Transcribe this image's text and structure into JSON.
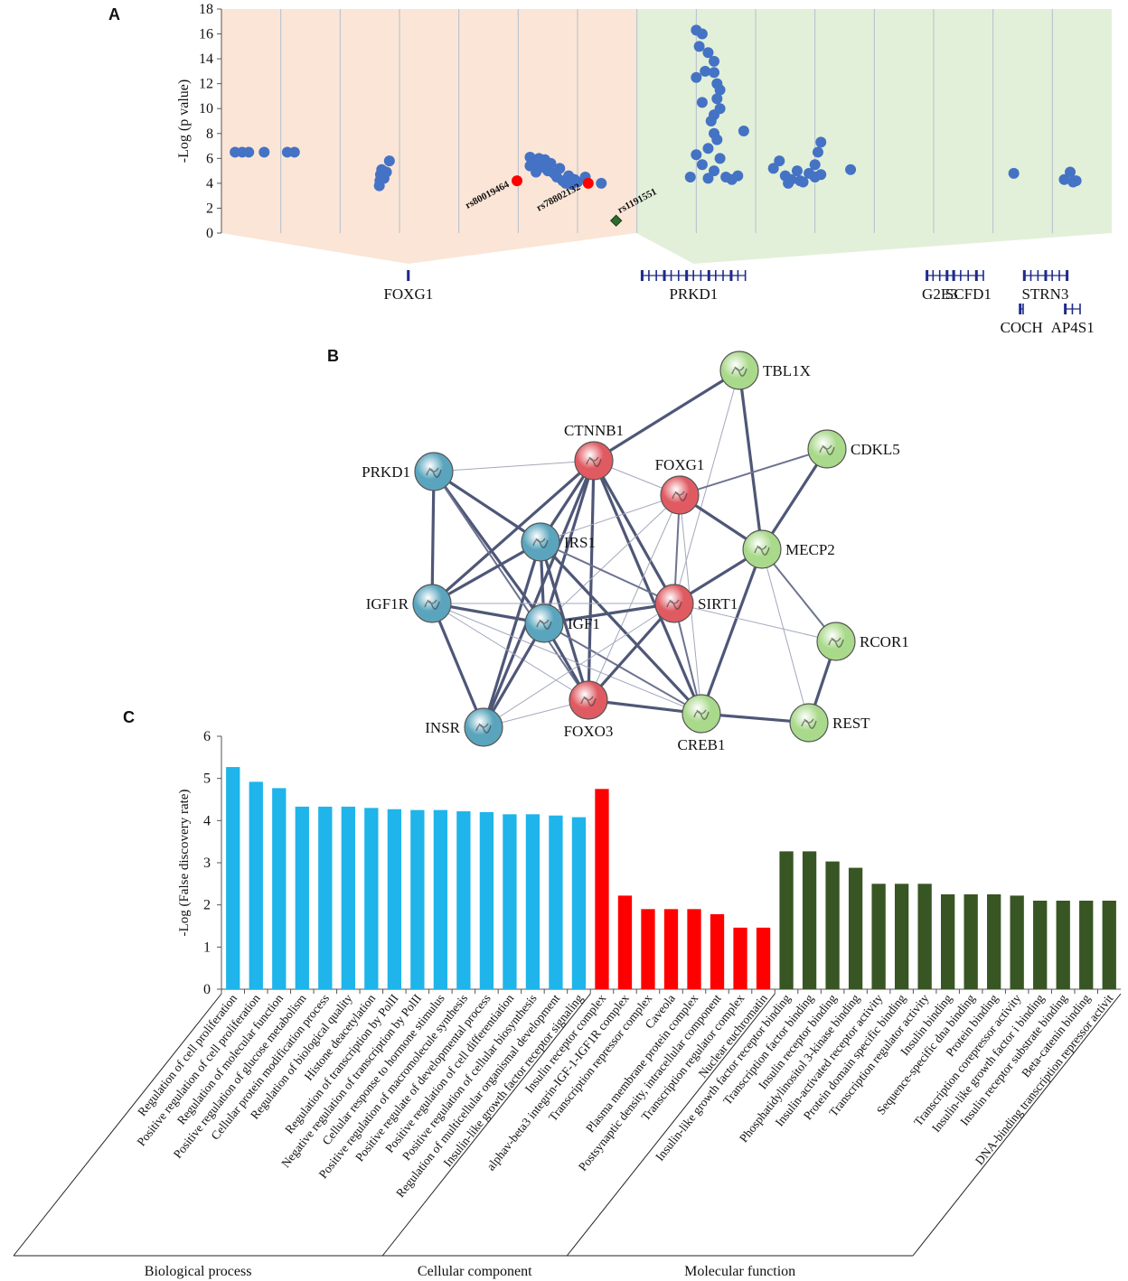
{
  "chart_data": [
    {
      "type": "scatter",
      "panel": "A",
      "y_label": "-Log (p value)",
      "xlim": [
        0,
        15
      ],
      "ylim": [
        0,
        18
      ],
      "yticks": [
        0,
        2,
        4,
        6,
        8,
        10,
        12,
        14,
        16,
        18
      ],
      "color": "#4472c4",
      "x": [
        0.23,
        0.35,
        0.46,
        0.72,
        1.11,
        1.23,
        2.66,
        2.67,
        2.68,
        2.7,
        2.78,
        2.83,
        2.74,
        5.2,
        5.25,
        5.3,
        5.35,
        5.4,
        5.45,
        5.5,
        5.55,
        5.6,
        5.65,
        5.7,
        5.75,
        5.8,
        5.85,
        5.9,
        5.95,
        6.0,
        5.2,
        5.3,
        5.5,
        6.13,
        6.4,
        8.0,
        8.1,
        8.05,
        8.2,
        8.3,
        8.3,
        8.35,
        8.4,
        8.35,
        8.4,
        8.3,
        8.3,
        8.35,
        8.2,
        8.0,
        8.1,
        8.3,
        7.9,
        8.5,
        8.6,
        8.7,
        8.2,
        8.4,
        8.8,
        8.0,
        8.1,
        8.25,
        8.15,
        9.3,
        9.4,
        9.5,
        9.6,
        9.7,
        9.8,
        9.9,
        10.0,
        10.05,
        10.1,
        10.0,
        9.55,
        9.75,
        10.1,
        10.6,
        13.35,
        14.3,
        14.2,
        14.35,
        14.4
      ],
      "values": [
        6.5,
        6.5,
        6.5,
        6.5,
        6.5,
        6.5,
        3.8,
        4.2,
        4.7,
        5.1,
        4.9,
        5.8,
        4.4,
        6.1,
        5.8,
        5.5,
        6.0,
        5.3,
        5.9,
        5.0,
        5.6,
        4.8,
        4.5,
        5.2,
        4.2,
        4.0,
        4.6,
        3.9,
        4.3,
        4.1,
        5.4,
        4.9,
        5.5,
        4.5,
        4.0,
        16.3,
        16.0,
        15.0,
        14.5,
        13.8,
        12.9,
        12.0,
        11.5,
        10.8,
        10.0,
        9.5,
        8.0,
        7.5,
        6.8,
        6.3,
        5.5,
        5.0,
        4.5,
        4.5,
        4.3,
        4.6,
        4.4,
        6.0,
        8.2,
        12.5,
        10.5,
        9.0,
        13.0,
        5.2,
        5.8,
        4.6,
        4.3,
        5.0,
        4.1,
        4.8,
        4.5,
        6.5,
        7.3,
        5.5,
        4.0,
        4.2,
        4.7,
        5.1,
        4.8,
        4.9,
        4.3,
        4.1,
        4.2
      ],
      "highlights": [
        {
          "label": "rs80019464",
          "x": 4.98,
          "y": 4.2,
          "color": "#ff0000",
          "marker": "circle"
        },
        {
          "label": "rs78802132",
          "x": 6.18,
          "y": 4.0,
          "color": "#ff0000",
          "marker": "circle"
        },
        {
          "label": "rs1191551",
          "x": 6.65,
          "y": 1.0,
          "color": "#2e6b2e",
          "marker": "diamond"
        }
      ],
      "genes": [
        [
          {
            "name": "FOXG1",
            "start": 3.14,
            "end": 3.16
          },
          {
            "name": "PRKD1",
            "start": 7.08,
            "end": 8.83
          },
          {
            "name": "G2E3",
            "start": 11.88,
            "end": 12.33
          },
          {
            "name": "SCFD1",
            "start": 12.33,
            "end": 12.84
          },
          {
            "name": "STRN3",
            "start": 13.52,
            "end": 14.24
          }
        ],
        [
          {
            "name": "COCH",
            "start": 13.45,
            "end": 13.51
          },
          {
            "name": "AP4S1",
            "start": 14.21,
            "end": 14.47
          }
        ]
      ]
    },
    {
      "type": "bar",
      "panel": "C",
      "y_label": "-Log (False discovery rate)",
      "ylim": [
        0,
        6
      ],
      "yticks": [
        0,
        1,
        2,
        3,
        4,
        5,
        6
      ],
      "groups": [
        {
          "name": "Biological process",
          "color": "#1fb4ea",
          "categories": [
            "Regulation of cell proliferation",
            "Positive regulation of cell proliferation",
            "Regulation of molecular function",
            "Positive regulation of glucose metabolism",
            "Cellular protein modification process",
            "Regulation of biological quality",
            "Histone deacetylation",
            "Regulation of transcription by PolII",
            "Negative regulation of transcription by PolII",
            "Cellular response to hormone stimulus",
            "Positive regulation of macromolecule synthesis",
            "Positive regulate of developmental process",
            "Positive regulation of cell differentiation",
            "Positive regulation of cellular biosynthesis",
            "Regulation of multicellular organismal development",
            "Insulin-like growth factor receptor signaling"
          ],
          "values": [
            5.27,
            4.92,
            4.77,
            4.33,
            4.33,
            4.33,
            4.3,
            4.27,
            4.25,
            4.25,
            4.22,
            4.2,
            4.15,
            4.15,
            4.12,
            4.08
          ]
        },
        {
          "name": "Cellular component",
          "color": "#ff0000",
          "categories": [
            "Insulin receptor complex",
            "alphav-beta3 integrin-IGF-1-IGF1R complex",
            "Transcription repressor complex",
            "Caveola",
            "Plasma membrane protein complex",
            "Postsynaptic density, intracellular component",
            "Transcription regulator complex",
            "Nuclear euchromatin"
          ],
          "values": [
            4.75,
            2.22,
            1.9,
            1.9,
            1.9,
            1.78,
            1.46,
            1.46
          ]
        },
        {
          "name": "Molecular function",
          "color": "#375623",
          "categories": [
            "Insulin-like growth factor receptor binding",
            "Transcription factor binding",
            "Insulin receptor binding",
            "Phosphatidylinositol 3-kinase binding",
            "Insulin-activated receptor activity",
            "Protein domain specific binding",
            "Transcription regulator activity",
            "Insulin binding",
            "Sequence-specific dna binding",
            "Protein binding",
            "Transcription corepressor activity",
            "Insulin-like growth factor i binding",
            "Insulin receptor substrate binding",
            "Beta-catenin binding",
            "DNA-binding transcription repressor activit"
          ],
          "values": [
            3.27,
            3.27,
            3.03,
            2.88,
            2.5,
            2.5,
            2.5,
            2.25,
            2.25,
            2.25,
            2.22,
            2.1,
            2.1,
            2.1,
            2.1
          ]
        }
      ]
    }
  ],
  "network": {
    "panel": "B",
    "nodes": [
      {
        "label": "TBL1X",
        "color": "#a9d98b"
      },
      {
        "label": "CDKL5",
        "color": "#a9d98b"
      },
      {
        "label": "CTNNB1",
        "color": "#e05a62"
      },
      {
        "label": "FOXG1",
        "color": "#e05a62"
      },
      {
        "label": "PRKD1",
        "color": "#5aa5bd"
      },
      {
        "label": "IRS1",
        "color": "#5aa5bd"
      },
      {
        "label": "MECP2",
        "color": "#a9d98b"
      },
      {
        "label": "IGF1R",
        "color": "#5aa5bd"
      },
      {
        "label": "SIRT1",
        "color": "#e05a62"
      },
      {
        "label": "IGF1",
        "color": "#5aa5bd"
      },
      {
        "label": "RCOR1",
        "color": "#a9d98b"
      },
      {
        "label": "INSR",
        "color": "#5aa5bd"
      },
      {
        "label": "FOXO3",
        "color": "#e05a62"
      },
      {
        "label": "CREB1",
        "color": "#a9d98b"
      },
      {
        "label": "REST",
        "color": "#a9d98b"
      }
    ],
    "edges": [
      [
        2,
        0
      ],
      [
        0,
        6
      ],
      [
        0,
        8
      ],
      [
        1,
        3
      ],
      [
        1,
        6
      ],
      [
        2,
        4
      ],
      [
        2,
        5
      ],
      [
        2,
        7
      ],
      [
        2,
        9
      ],
      [
        2,
        11
      ],
      [
        2,
        12
      ],
      [
        2,
        8
      ],
      [
        2,
        13
      ],
      [
        2,
        3
      ],
      [
        3,
        6
      ],
      [
        3,
        5
      ],
      [
        3,
        9
      ],
      [
        3,
        12
      ],
      [
        3,
        8
      ],
      [
        3,
        13
      ],
      [
        4,
        5
      ],
      [
        4,
        7
      ],
      [
        4,
        9
      ],
      [
        4,
        12
      ],
      [
        5,
        7
      ],
      [
        5,
        11
      ],
      [
        5,
        9
      ],
      [
        5,
        12
      ],
      [
        5,
        8
      ],
      [
        5,
        13
      ],
      [
        6,
        8
      ],
      [
        6,
        13
      ],
      [
        6,
        10
      ],
      [
        6,
        14
      ],
      [
        7,
        9
      ],
      [
        7,
        11
      ],
      [
        7,
        12
      ],
      [
        7,
        8
      ],
      [
        7,
        13
      ],
      [
        9,
        11
      ],
      [
        9,
        12
      ],
      [
        9,
        8
      ],
      [
        9,
        13
      ],
      [
        8,
        12
      ],
      [
        8,
        10
      ],
      [
        8,
        13
      ],
      [
        8,
        11
      ],
      [
        12,
        13
      ],
      [
        13,
        14
      ],
      [
        10,
        14
      ],
      [
        11,
        12
      ]
    ]
  }
}
